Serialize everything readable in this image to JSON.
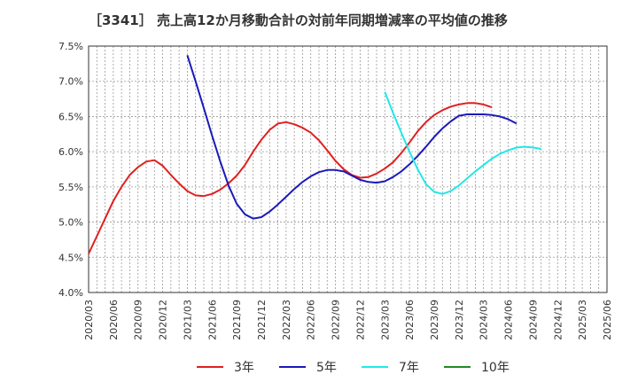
{
  "chart_data": {
    "type": "line",
    "title": "［3341］ 売上高12か月移動合計の対前年同期増減率の平均値の推移",
    "xlabel": "",
    "ylabel": "",
    "ylim": [
      4.0,
      7.5
    ],
    "yticks": [
      "7.5%",
      "7.0%",
      "6.5%",
      "6.0%",
      "5.5%",
      "5.0%",
      "4.5%",
      "4.0%"
    ],
    "ytick_values": [
      7.5,
      7.0,
      6.5,
      6.0,
      5.5,
      5.0,
      4.5,
      4.0
    ],
    "xticks": [
      "2020/03",
      "2020/06",
      "2020/09",
      "2020/12",
      "2021/03",
      "2021/06",
      "2021/09",
      "2021/12",
      "2022/03",
      "2022/06",
      "2022/09",
      "2022/12",
      "2023/03",
      "2023/06",
      "2023/09",
      "2023/12",
      "2024/03",
      "2024/06",
      "2024/09",
      "2024/12",
      "2025/03",
      "2025/06"
    ],
    "x_index_range": [
      0,
      63
    ],
    "grid": true,
    "legend_position": "bottom",
    "series": [
      {
        "name": "3年",
        "color": "#e02020",
        "start_index": 0,
        "values": [
          4.55,
          4.8,
          5.05,
          5.3,
          5.5,
          5.67,
          5.78,
          5.86,
          5.88,
          5.8,
          5.67,
          5.55,
          5.44,
          5.38,
          5.37,
          5.4,
          5.46,
          5.55,
          5.66,
          5.81,
          6.0,
          6.17,
          6.31,
          6.4,
          6.42,
          6.39,
          6.34,
          6.27,
          6.16,
          6.02,
          5.87,
          5.75,
          5.67,
          5.63,
          5.64,
          5.69,
          5.76,
          5.85,
          5.98,
          6.13,
          6.29,
          6.42,
          6.52,
          6.59,
          6.64,
          6.67,
          6.69,
          6.69,
          6.67,
          6.63
        ]
      },
      {
        "name": "5年",
        "color": "#1a1aba",
        "start_index": 12,
        "values": [
          7.37,
          7.0,
          6.62,
          6.23,
          5.86,
          5.52,
          5.26,
          5.11,
          5.05,
          5.07,
          5.15,
          5.25,
          5.36,
          5.47,
          5.57,
          5.65,
          5.71,
          5.74,
          5.74,
          5.72,
          5.66,
          5.6,
          5.57,
          5.56,
          5.58,
          5.64,
          5.72,
          5.82,
          5.94,
          6.07,
          6.21,
          6.33,
          6.43,
          6.51,
          6.53,
          6.53,
          6.53,
          6.52,
          6.5,
          6.46,
          6.4
        ]
      },
      {
        "name": "7年",
        "color": "#20e8e8",
        "start_index": 36,
        "values": [
          6.85,
          6.55,
          6.27,
          6.0,
          5.75,
          5.54,
          5.43,
          5.4,
          5.44,
          5.52,
          5.62,
          5.72,
          5.81,
          5.9,
          5.97,
          6.02,
          6.06,
          6.07,
          6.06,
          6.04
        ]
      },
      {
        "name": "10年",
        "color": "#228b22",
        "start_index": 0,
        "values": []
      }
    ]
  }
}
